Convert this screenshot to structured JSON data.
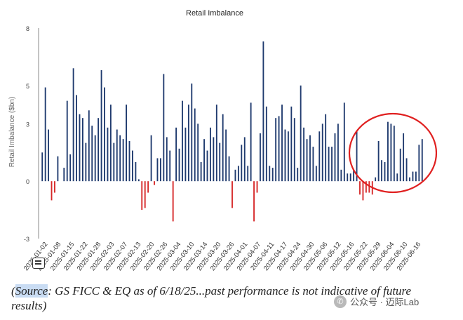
{
  "colors": {
    "positive": "#1f3a6e",
    "negative": "#d62728",
    "annotation": "#e02020",
    "axis": "#555555"
  },
  "chart_data": {
    "type": "bar",
    "title": "Retail Imbalance",
    "xlabel": "",
    "ylabel": "Retail Imbalance ($bn)",
    "ylim": [
      -3,
      8
    ],
    "yticks": [
      -3,
      0,
      3,
      5,
      8
    ],
    "grid": false,
    "xtick_labels": [
      "2025-01-02",
      "2025-01-08",
      "2025-01-15",
      "2025-01-22",
      "2025-01-28",
      "2025-02-03",
      "2025-02-07",
      "2025-02-13",
      "2025-02-20",
      "2025-02-26",
      "2025-03-04",
      "2025-03-10",
      "2025-03-14",
      "2025-03-20",
      "2025-03-26",
      "2025-04-01",
      "2025-04-07",
      "2025-04-11",
      "2025-04-17",
      "2025-04-24",
      "2025-04-30",
      "2025-05-06",
      "2025-05-12",
      "2025-05-16",
      "2025-05-22",
      "2025-05-29",
      "2025-06-04",
      "2025-06-10",
      "2025-06-16"
    ],
    "values": [
      1.5,
      4.9,
      2.7,
      -1.0,
      -0.6,
      1.3,
      0,
      0.7,
      4.2,
      1.4,
      5.9,
      4.5,
      3.5,
      3.3,
      2.0,
      3.7,
      2.9,
      2.4,
      3.3,
      5.8,
      4.9,
      2.8,
      4.0,
      2.0,
      2.7,
      2.4,
      2.2,
      4.0,
      2.1,
      1.6,
      1.0,
      0.1,
      -1.5,
      -1.4,
      -0.6,
      2.4,
      -0.2,
      1.2,
      1.2,
      5.6,
      2.3,
      1.6,
      -2.1,
      2.8,
      1.7,
      4.2,
      2.8,
      4.0,
      5.1,
      3.8,
      3.0,
      1.0,
      2.2,
      1.6,
      2.8,
      2.3,
      4.0,
      2.0,
      3.5,
      2.7,
      1.3,
      -1.4,
      0.6,
      0.8,
      1.9,
      2.3,
      0.8,
      4.1,
      -2.1,
      -0.6,
      2.5,
      7.3,
      3.9,
      0.8,
      0.7,
      3.3,
      3.4,
      4.0,
      2.7,
      2.6,
      3.9,
      3.3,
      0.7,
      5.0,
      2.8,
      2.2,
      2.4,
      1.8,
      0.8,
      2.6,
      3.0,
      3.5,
      1.8,
      1.8,
      2.5,
      3.0,
      0.6,
      4.1,
      0.4,
      0.4,
      0.6,
      2.6,
      -0.7,
      -1.0,
      -0.6,
      -0.6,
      -0.7,
      0.2,
      2.1,
      1.1,
      1.0,
      3.1,
      3.0,
      2.9,
      0.4,
      1.7,
      2.5,
      1.2,
      0.2,
      0.5,
      0.5,
      1.9,
      2.2
    ],
    "annotations": [
      {
        "shape": "ellipse",
        "note": "red circle highlighting recent period (late May - mid June 2025)"
      }
    ]
  },
  "footer": {
    "source_prefix": "(",
    "source_word": "Source",
    "source_text": ": GS FICC & EQ as of 6/18/25...past performance is not indicative of future results)",
    "watermark": "公众号 · 迈际Lab",
    "watermark_icon": "wechat-icon"
  }
}
